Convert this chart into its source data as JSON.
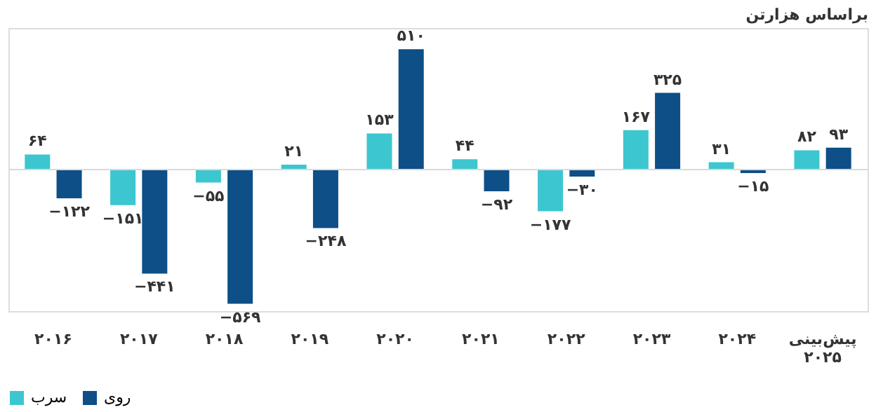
{
  "chart_data": {
    "type": "bar",
    "title": "براساس هزارتن",
    "categories": [
      "۲۰۱۶",
      "۲۰۱۷",
      "۲۰۱۸",
      "۲۰۱۹",
      "۲۰۲۰",
      "۲۰۲۱",
      "۲۰۲۲",
      "۲۰۲۳",
      "۲۰۲۴",
      "پیش‌بینی\n۲۰۲۵"
    ],
    "series": [
      {
        "name": "سرب",
        "color": "#3cc6d0",
        "values": [
          64,
          -151,
          -55,
          21,
          153,
          44,
          -177,
          167,
          31,
          82
        ],
        "value_labels": [
          "۶۴",
          "−۱۵۱",
          "−۵۵",
          "۲۱",
          "۱۵۳",
          "۴۴",
          "−۱۷۷",
          "۱۶۷",
          "۳۱",
          "۸۲"
        ]
      },
      {
        "name": "روی",
        "color": "#0d4f86",
        "values": [
          -122,
          -441,
          -569,
          -248,
          510,
          -92,
          -30,
          325,
          -15,
          93
        ],
        "value_labels": [
          "−۱۲۲",
          "−۴۴۱",
          "−۵۶۹",
          "−۲۴۸",
          "۵۱۰",
          "−۹۲",
          "−۳۰",
          "۳۲۵",
          "−۱۵",
          "۹۳"
        ]
      }
    ],
    "ref_lines": [
      {
        "axis": "y",
        "value": 0,
        "color": "#d9d9d9"
      }
    ],
    "legend": "bottom",
    "grid": false,
    "tick_labels": "x"
  }
}
